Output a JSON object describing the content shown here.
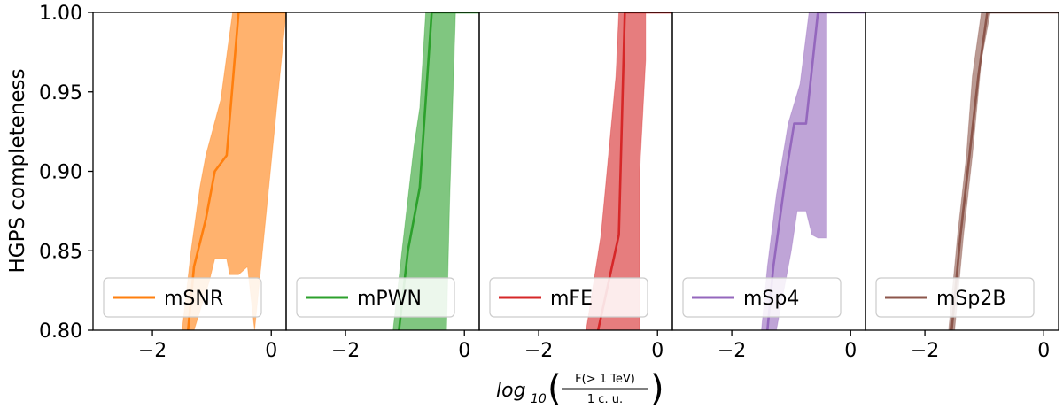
{
  "chart_data": {
    "type": "area",
    "ylabel": "HGPS completeness",
    "xlabel": {
      "func": "log",
      "sub": "10",
      "numerator": "F(> 1 TeV)",
      "denominator": "1 c. u."
    },
    "ylim": [
      0.8,
      1.0
    ],
    "yticks": [
      0.8,
      0.85,
      0.9,
      0.95,
      1.0
    ],
    "ytick_labels": [
      "0.80",
      "0.85",
      "0.90",
      "0.95",
      "1.00"
    ],
    "xlim": [
      -3.0,
      0.25
    ],
    "xticks": [
      -2,
      0
    ],
    "xtick_labels": [
      "−2",
      "0"
    ],
    "legend_position": "lower center",
    "panels": [
      {
        "name": "mSNR",
        "color": "#ff7f0e",
        "median": [
          [
            -1.4,
            0.8
          ],
          [
            -1.3,
            0.84
          ],
          [
            -1.1,
            0.87
          ],
          [
            -0.95,
            0.9
          ],
          [
            -0.75,
            0.91
          ],
          [
            -0.55,
            1.0
          ],
          [
            0.25,
            1.0
          ]
        ],
        "upper": [
          [
            -1.5,
            0.8
          ],
          [
            -1.35,
            0.85
          ],
          [
            -1.2,
            0.89
          ],
          [
            -1.1,
            0.91
          ],
          [
            -0.85,
            0.945
          ],
          [
            -0.65,
            1.0
          ],
          [
            0.25,
            1.0
          ]
        ],
        "lower": [
          [
            -1.3,
            0.8
          ],
          [
            -1.05,
            0.83
          ],
          [
            -0.95,
            0.845
          ],
          [
            -0.75,
            0.845
          ],
          [
            -0.7,
            0.835
          ],
          [
            -0.55,
            0.835
          ],
          [
            -0.4,
            0.84
          ],
          [
            -0.28,
            0.8
          ]
        ]
      },
      {
        "name": "mPWN",
        "color": "#2ca02c",
        "median": [
          [
            -1.1,
            0.8
          ],
          [
            -0.95,
            0.85
          ],
          [
            -0.75,
            0.89
          ],
          [
            -0.55,
            1.0
          ],
          [
            0.25,
            1.0
          ]
        ],
        "upper": [
          [
            -1.2,
            0.8
          ],
          [
            -1.05,
            0.85
          ],
          [
            -0.85,
            0.915
          ],
          [
            -0.75,
            0.94
          ],
          [
            -0.65,
            1.0
          ],
          [
            0.25,
            1.0
          ]
        ],
        "lower": [
          [
            -0.3,
            0.8
          ],
          [
            -0.25,
            0.88
          ],
          [
            -0.15,
            1.0
          ]
        ]
      },
      {
        "name": "mFE",
        "color": "#d62728",
        "median": [
          [
            -1.0,
            0.8
          ],
          [
            -0.65,
            0.86
          ],
          [
            -0.55,
            1.0
          ],
          [
            0.25,
            1.0
          ]
        ],
        "upper": [
          [
            -1.2,
            0.8
          ],
          [
            -0.95,
            0.86
          ],
          [
            -0.7,
            0.96
          ],
          [
            -0.65,
            1.0
          ],
          [
            0.25,
            1.0
          ]
        ],
        "lower": [
          [
            -0.3,
            0.8
          ],
          [
            -0.3,
            0.9
          ],
          [
            -0.2,
            0.97
          ],
          [
            -0.2,
            1.0
          ]
        ]
      },
      {
        "name": "mSp4",
        "color": "#9467bd",
        "median": [
          [
            -1.4,
            0.8
          ],
          [
            -1.3,
            0.84
          ],
          [
            -1.1,
            0.895
          ],
          [
            -0.95,
            0.93
          ],
          [
            -0.75,
            0.93
          ],
          [
            -0.55,
            1.0
          ],
          [
            0.25,
            1.0
          ]
        ],
        "upper": [
          [
            -1.5,
            0.8
          ],
          [
            -1.4,
            0.84
          ],
          [
            -1.25,
            0.885
          ],
          [
            -1.05,
            0.93
          ],
          [
            -0.85,
            0.955
          ],
          [
            -0.7,
            1.0
          ],
          [
            0.25,
            1.0
          ]
        ],
        "lower": [
          [
            -1.25,
            0.8
          ],
          [
            -1.0,
            0.85
          ],
          [
            -0.9,
            0.875
          ],
          [
            -0.75,
            0.875
          ],
          [
            -0.65,
            0.86
          ],
          [
            -0.55,
            0.858
          ],
          [
            -0.4,
            0.858
          ],
          [
            -0.4,
            1.0
          ]
        ]
      },
      {
        "name": "mSp2B",
        "color": "#8c564b",
        "median": [
          [
            -1.55,
            0.8
          ],
          [
            -1.4,
            0.86
          ],
          [
            -1.25,
            0.91
          ],
          [
            -1.1,
            0.96
          ],
          [
            -0.95,
            1.0
          ],
          [
            0.25,
            1.0
          ]
        ],
        "upper": [
          [
            -1.6,
            0.8
          ],
          [
            -1.45,
            0.86
          ],
          [
            -1.3,
            0.91
          ],
          [
            -1.2,
            0.96
          ],
          [
            -1.05,
            1.0
          ],
          [
            0.25,
            1.0
          ]
        ],
        "lower": [
          [
            -1.5,
            0.8
          ],
          [
            -1.35,
            0.86
          ],
          [
            -1.2,
            0.91
          ],
          [
            -1.05,
            0.97
          ],
          [
            -0.9,
            1.0
          ]
        ]
      }
    ]
  }
}
